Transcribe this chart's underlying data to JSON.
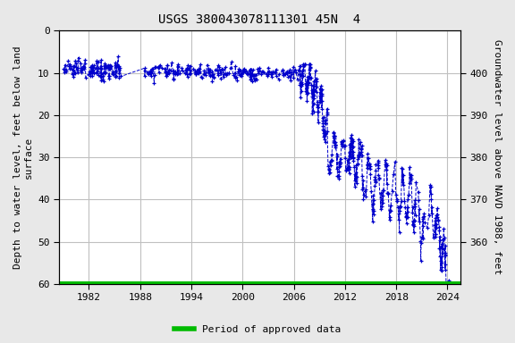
{
  "title": "USGS 380043078111301 45N  4",
  "ylabel_left": "Depth to water level, feet below land\nsurface",
  "ylabel_right": "Groundwater level above NAVD 1988, feet",
  "ylim_left": [
    60,
    0
  ],
  "ylim_right": [
    355,
    415
  ],
  "xlim": [
    1978.5,
    2025.5
  ],
  "yticks_left": [
    0,
    10,
    20,
    30,
    40,
    50,
    60
  ],
  "yticks_right": [
    360,
    370,
    380,
    390,
    400
  ],
  "xticks": [
    1982,
    1988,
    1994,
    2000,
    2006,
    2012,
    2018,
    2024
  ],
  "background_color": "#e8e8e8",
  "plot_bg_color": "#ffffff",
  "grid_color": "#c0c0c0",
  "data_color": "#0000cc",
  "approved_color": "#00bb00",
  "approved_y": 60,
  "legend_label": "Period of approved data",
  "title_fontsize": 10,
  "label_fontsize": 8,
  "tick_fontsize": 8,
  "surface_elev": 410.0
}
